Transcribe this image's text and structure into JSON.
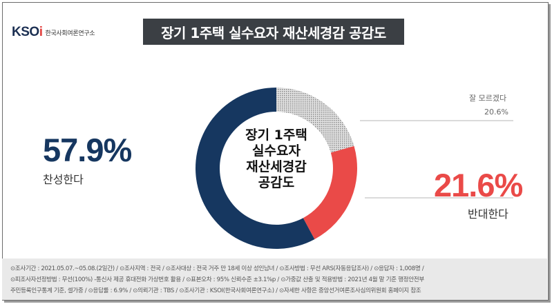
{
  "logo": {
    "mark_a": "KSO",
    "mark_b": "i",
    "text": "한국사회여론연구소"
  },
  "title": "장기 1주택 실수요자 재산세경감 공감도",
  "chart_data": {
    "type": "pie",
    "style": "donut",
    "center_label_lines": [
      "장기 1주택",
      "실수요자",
      "재산세경감",
      "공감도"
    ],
    "slices": [
      {
        "label": "찬성한다",
        "value_text": "57.9%",
        "value": 57.9,
        "color": "#163760"
      },
      {
        "label": "반대한다",
        "value_text": "21.6%",
        "value": 21.6,
        "color": "#ea4a48"
      },
      {
        "label": "잘 모르겠다",
        "value_text": "20.6%",
        "value": 20.6,
        "color": "#c8c8c8"
      }
    ]
  },
  "footer": {
    "line1": "⊙조사기간 : 2021.05.07.~05.08.(2일간)  / ⊙조사지역 : 전국 / ⊙조사대상 : 전국 거주 만 18세 이상 성인남녀 / ⊙조사방법 : 무선 ARS(자동응답조사) / ⊙응답자 : 1,008명 /",
    "line2": "⊙피조사자선정방법 : 무선(100%) -통신사 제공 휴대전화 가상번호 활용 / ⊙표본오차 : 95% 신뢰수준 ±3.1%p / ⊙가중값 산출 및 적용방법 : 2021년 4월 말 기준 행정안전부",
    "line3": "주민등록인구통계 기준, 셀가중 / ⊙응답률 : 6.9% / ⊙의뢰기관 : TBS / ⊙조사기관 : KSOI(한국사회여론연구소) / ⊙자세한 사항은 중앙선거여론조사심의위원회 홈페이지 참조"
  }
}
